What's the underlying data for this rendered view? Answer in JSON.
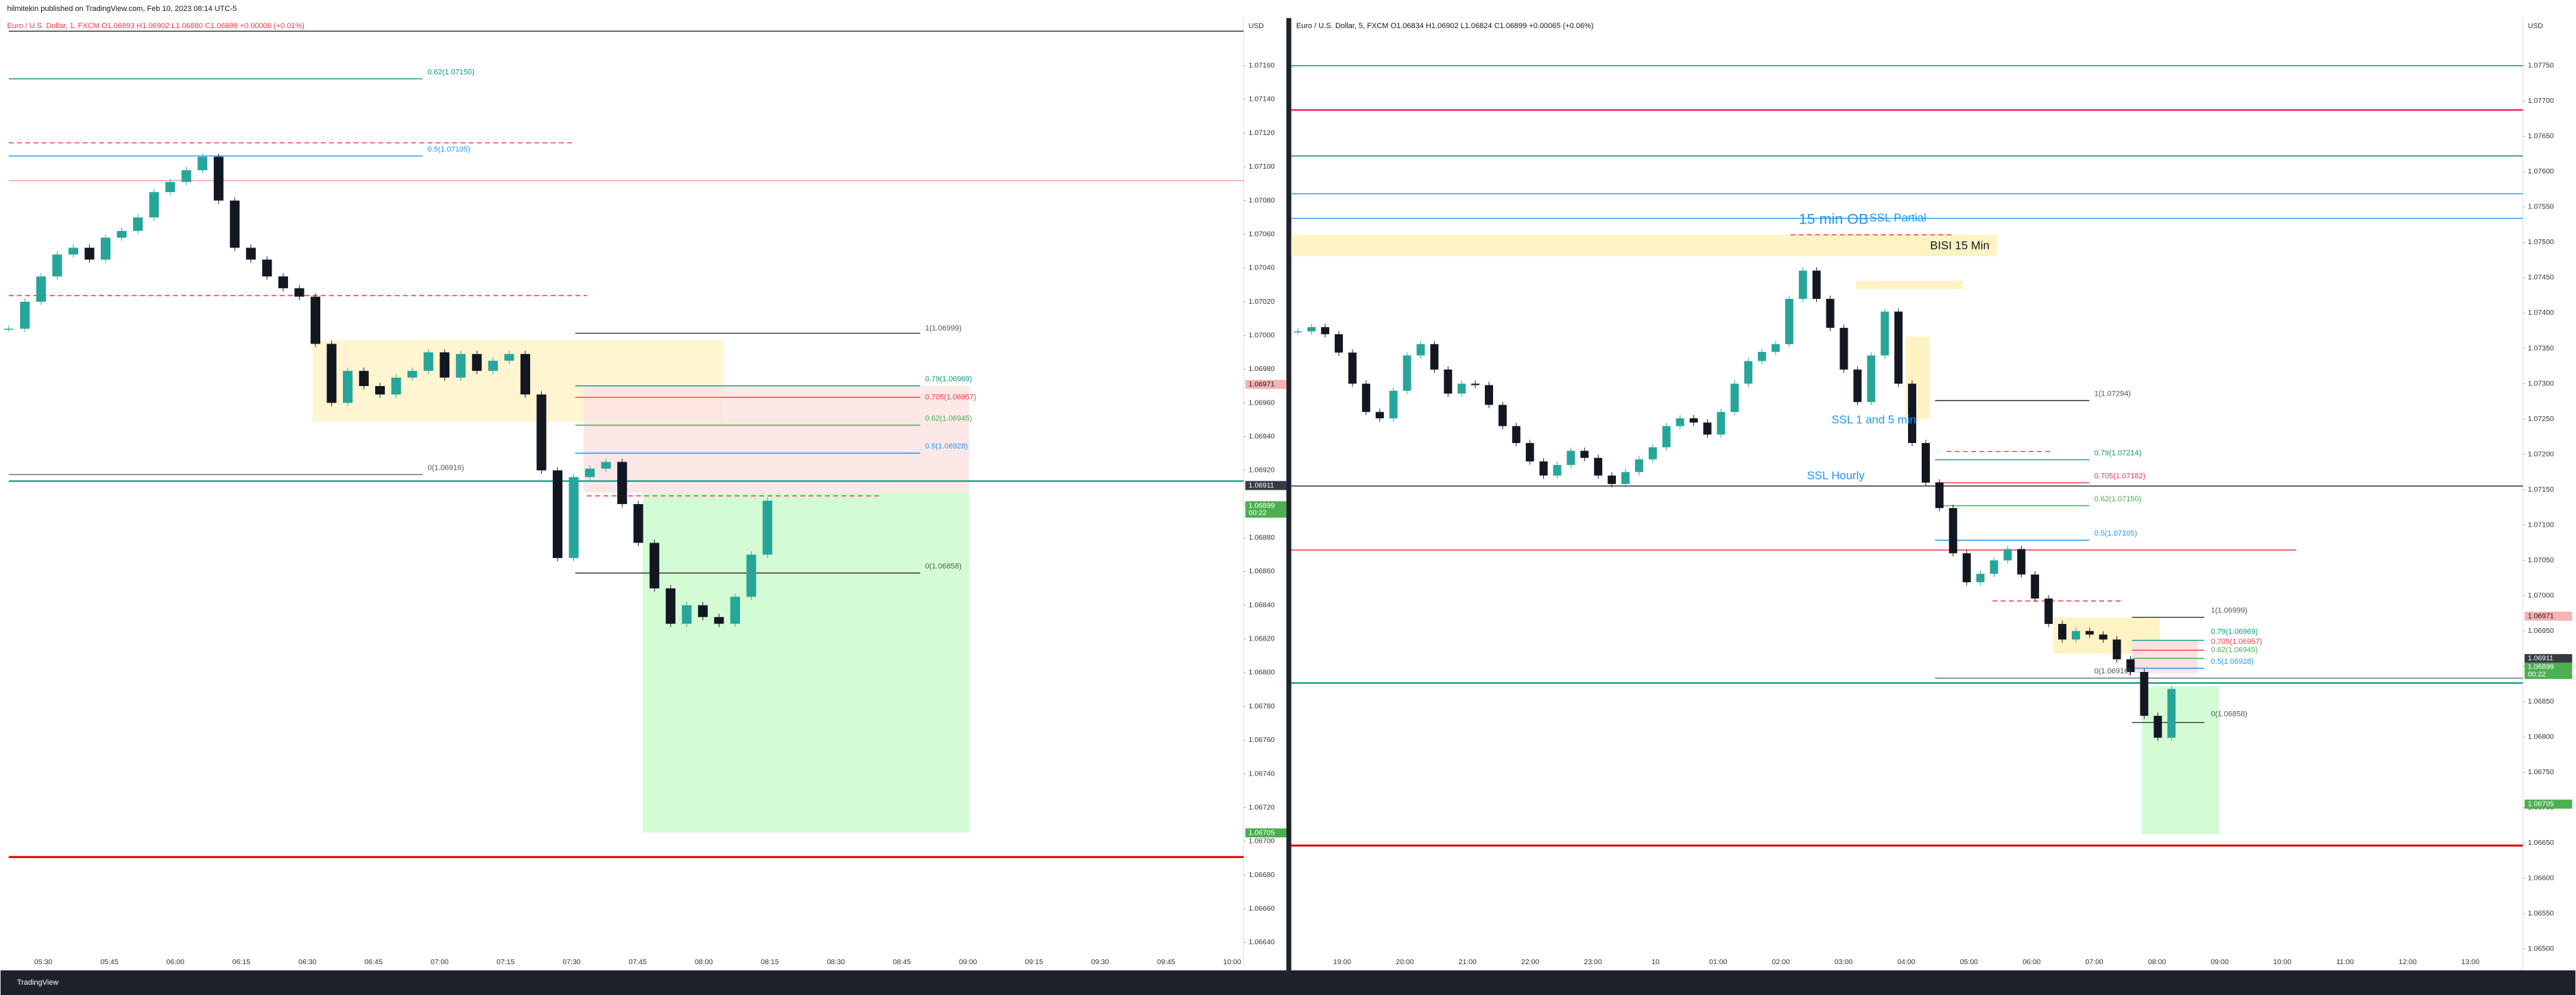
{
  "header": {
    "title": "hilmitekin published on TradingView.com, Feb 10, 2023 08:14 UTC-5",
    "footer": "TradingView"
  },
  "chart_data": [
    {
      "type": "candlestick",
      "title": "Euro / U.S. Dollar, 1, FXCM  O1.06893  H1.06902  L1.06880  C1.06899  +0.00006 (+0.01%)",
      "axis_label": "USD",
      "ylim": [
        1.0664,
        1.0716
      ],
      "yticks": [
        {
          "value": 1.0716,
          "label": "1.07160"
        },
        {
          "value": 1.0714,
          "label": "1.07140"
        },
        {
          "value": 1.0712,
          "label": "1.07120"
        },
        {
          "value": 1.071,
          "label": "1.07100"
        },
        {
          "value": 1.0708,
          "label": "1.07080"
        },
        {
          "value": 1.0706,
          "label": "1.07060"
        },
        {
          "value": 1.0704,
          "label": "1.07040"
        },
        {
          "value": 1.0702,
          "label": "1.07020"
        },
        {
          "value": 1.07,
          "label": "1.07000"
        },
        {
          "value": 1.0698,
          "label": "1.06980"
        },
        {
          "value": 1.0696,
          "label": "1.06960"
        },
        {
          "value": 1.0694,
          "label": "1.06940"
        },
        {
          "value": 1.0692,
          "label": "1.06920"
        },
        {
          "value": 1.069,
          "label": "1.06900"
        },
        {
          "value": 1.0688,
          "label": "1.06880"
        },
        {
          "value": 1.0686,
          "label": "1.06860"
        },
        {
          "value": 1.0684,
          "label": "1.06840"
        },
        {
          "value": 1.0682,
          "label": "1.06820"
        },
        {
          "value": 1.068,
          "label": "1.06800"
        },
        {
          "value": 1.0678,
          "label": "1.06780"
        },
        {
          "value": 1.0676,
          "label": "1.06760"
        },
        {
          "value": 1.0674,
          "label": "1.06740"
        },
        {
          "value": 1.0672,
          "label": "1.06720"
        },
        {
          "value": 1.067,
          "label": "1.06700"
        },
        {
          "value": 1.0668,
          "label": "1.06680"
        },
        {
          "value": 1.0666,
          "label": "1.06660"
        },
        {
          "value": 1.0664,
          "label": "1.06640"
        }
      ],
      "xticks": [
        "05:30",
        "05:45",
        "06:00",
        "06:15",
        "06:30",
        "06:45",
        "07:00",
        "07:15",
        "07:30",
        "07:45",
        "08:00",
        "08:15",
        "08:30",
        "08:45",
        "09:00",
        "09:15",
        "09:30",
        "09:45",
        "10:00"
      ],
      "values": [
        1.07004,
        1.0702,
        1.07035,
        1.07048,
        1.07052,
        1.07045,
        1.07058,
        1.07062,
        1.0707,
        1.07085,
        1.07091,
        1.07098,
        1.07106,
        1.0708,
        1.07052,
        1.07045,
        1.07035,
        1.07028,
        1.07023,
        1.06995,
        1.0696,
        1.06979,
        1.0697,
        1.06965,
        1.06975,
        1.06979,
        1.0699,
        1.06975,
        1.06989,
        1.06979,
        1.06985,
        1.06989,
        1.06965,
        1.0692,
        1.06868,
        1.06916,
        1.06921,
        1.06925,
        1.069,
        1.06877,
        1.0685,
        1.06829,
        1.0684,
        1.06833,
        1.06829,
        1.06845,
        1.0687,
        1.06902
      ],
      "annotations": [
        "0.62(1.07150)",
        "0.5(1.07105)",
        "1(1.06999)",
        "0.79(1.06969)",
        "0.705(1.06957)",
        "0.62(1.06945)",
        "0.5(1.06928)",
        "0(1.06916)",
        "0(1.06858)"
      ],
      "markers": [
        {
          "value": 1.06971,
          "label": "1.06971",
          "color": "#f7b3b3"
        },
        {
          "value": 1.06911,
          "label": "1.06911",
          "color": "#363a45"
        },
        {
          "value": 1.06899,
          "label": "1.06899",
          "sub": "00:22",
          "color": "#4caf50"
        },
        {
          "value": 1.06705,
          "label": "1.06705",
          "color": "#4caf50"
        }
      ]
    },
    {
      "type": "candlestick",
      "title": "Euro / U.S. Dollar, 5, FXCM  O1.06834  H1.06902  L1.06824  C1.06899  +0.00065 (+0.06%)",
      "axis_label": "USD",
      "ylim": [
        1.065,
        1.0775
      ],
      "yticks": [
        {
          "value": 1.0775,
          "label": "1.07750"
        },
        {
          "value": 1.077,
          "label": "1.07700"
        },
        {
          "value": 1.0765,
          "label": "1.07650"
        },
        {
          "value": 1.076,
          "label": "1.07600"
        },
        {
          "value": 1.0755,
          "label": "1.07550"
        },
        {
          "value": 1.075,
          "label": "1.07500"
        },
        {
          "value": 1.0745,
          "label": "1.07450"
        },
        {
          "value": 1.074,
          "label": "1.07400"
        },
        {
          "value": 1.0735,
          "label": "1.07350"
        },
        {
          "value": 1.073,
          "label": "1.07300"
        },
        {
          "value": 1.0725,
          "label": "1.07250"
        },
        {
          "value": 1.072,
          "label": "1.07200"
        },
        {
          "value": 1.0715,
          "label": "1.07150"
        },
        {
          "value": 1.071,
          "label": "1.07100"
        },
        {
          "value": 1.0705,
          "label": "1.07050"
        },
        {
          "value": 1.07,
          "label": "1.07000"
        },
        {
          "value": 1.0695,
          "label": "1.06950"
        },
        {
          "value": 1.069,
          "label": "1.06900"
        },
        {
          "value": 1.0685,
          "label": "1.06850"
        },
        {
          "value": 1.068,
          "label": "1.06800"
        },
        {
          "value": 1.0675,
          "label": "1.06750"
        },
        {
          "value": 1.067,
          "label": "1.06700"
        },
        {
          "value": 1.0665,
          "label": "1.06650"
        },
        {
          "value": 1.066,
          "label": "1.06600"
        },
        {
          "value": 1.0655,
          "label": "1.06550"
        },
        {
          "value": 1.065,
          "label": "1.06500"
        }
      ],
      "xticks": [
        "19:00",
        "20:00",
        "21:00",
        "22:00",
        "23:00",
        "10",
        "01:00",
        "02:00",
        "03:00",
        "04:00",
        "05:00",
        "06:00",
        "07:00",
        "08:00",
        "09:00",
        "10:00",
        "11:00",
        "12:00",
        "13:00"
      ],
      "values": [
        1.07374,
        1.0738,
        1.0737,
        1.07344,
        1.073,
        1.0726,
        1.07251,
        1.0729,
        1.0734,
        1.07356,
        1.0732,
        1.07286,
        1.073,
        1.07298,
        1.0727,
        1.0724,
        1.07216,
        1.0719,
        1.0717,
        1.07185,
        1.07205,
        1.07195,
        1.0717,
        1.07158,
        1.07175,
        1.07193,
        1.0721,
        1.0724,
        1.07251,
        1.07245,
        1.07228,
        1.0726,
        1.073,
        1.07332,
        1.07345,
        1.07356,
        1.0742,
        1.0746,
        1.0742,
        1.07379,
        1.0732,
        1.07274,
        1.0734,
        1.07402,
        1.073,
        1.07216,
        1.0716,
        1.07124,
        1.0706,
        1.07019,
        1.07031,
        1.0705,
        1.07066,
        1.0703,
        1.06996,
        1.0696,
        1.06938,
        1.0695,
        1.06945,
        1.06938,
        1.0691,
        1.06892,
        1.0683,
        1.06799,
        1.06868
      ],
      "annotations": [
        "15 min OB",
        "SSL Partial",
        "BISI 15 Min",
        "SSL 1 and 5 min",
        "SSL Hourly",
        "1(1.07294)",
        "0.79(1.07214)",
        "0.705(1.07182)",
        "0.62(1.07150)",
        "0.5(1.07105)",
        "1(1.06999)",
        "0.79(1.06969)",
        "0.705(1.06957)",
        "0.62(1.06945)",
        "0.5(1.06928)",
        "0(1.06916)",
        "0(1.06858)"
      ],
      "markers": [
        {
          "value": 1.06971,
          "label": "1.06971",
          "color": "#f7b3b3"
        },
        {
          "value": 1.06911,
          "label": "1.06911",
          "color": "#363a45"
        },
        {
          "value": 1.06899,
          "label": "1.06899",
          "sub": "00:22",
          "color": "#4caf50"
        },
        {
          "value": 1.06705,
          "label": "1.06705",
          "color": "#4caf50"
        }
      ]
    }
  ]
}
